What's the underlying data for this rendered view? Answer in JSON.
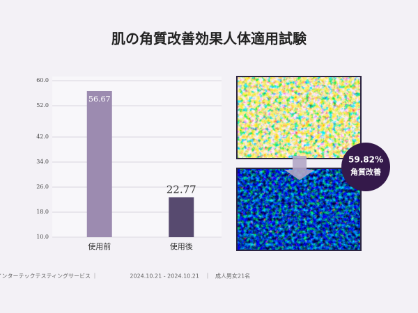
{
  "chart_data": {
    "type": "bar",
    "title": "肌の角質改善効果人体適用試験",
    "categories": [
      "使用前",
      "使用後"
    ],
    "values": [
      56.67,
      22.77
    ],
    "colors": [
      "#9c8bb0",
      "#574a6f"
    ],
    "ylim": [
      10,
      60
    ],
    "yticks": [
      {
        "value": 10,
        "label": "10.0"
      },
      {
        "value": 18,
        "label": "18.0"
      },
      {
        "value": 26,
        "label": "26.0"
      },
      {
        "value": 34,
        "label": "34.0"
      },
      {
        "value": 42,
        "label": "42.0"
      },
      {
        "value": 52,
        "label": "52.0"
      },
      {
        "value": 60,
        "label": "60.0"
      }
    ],
    "grid": true
  },
  "badge": {
    "text": "59.82%",
    "caption": "角質改善"
  },
  "footer": {
    "source": "(株)韓国インターテックテスティングサービス",
    "period": "2024.10.21 - 2024.10.21",
    "subjects": "成人男女21名"
  }
}
